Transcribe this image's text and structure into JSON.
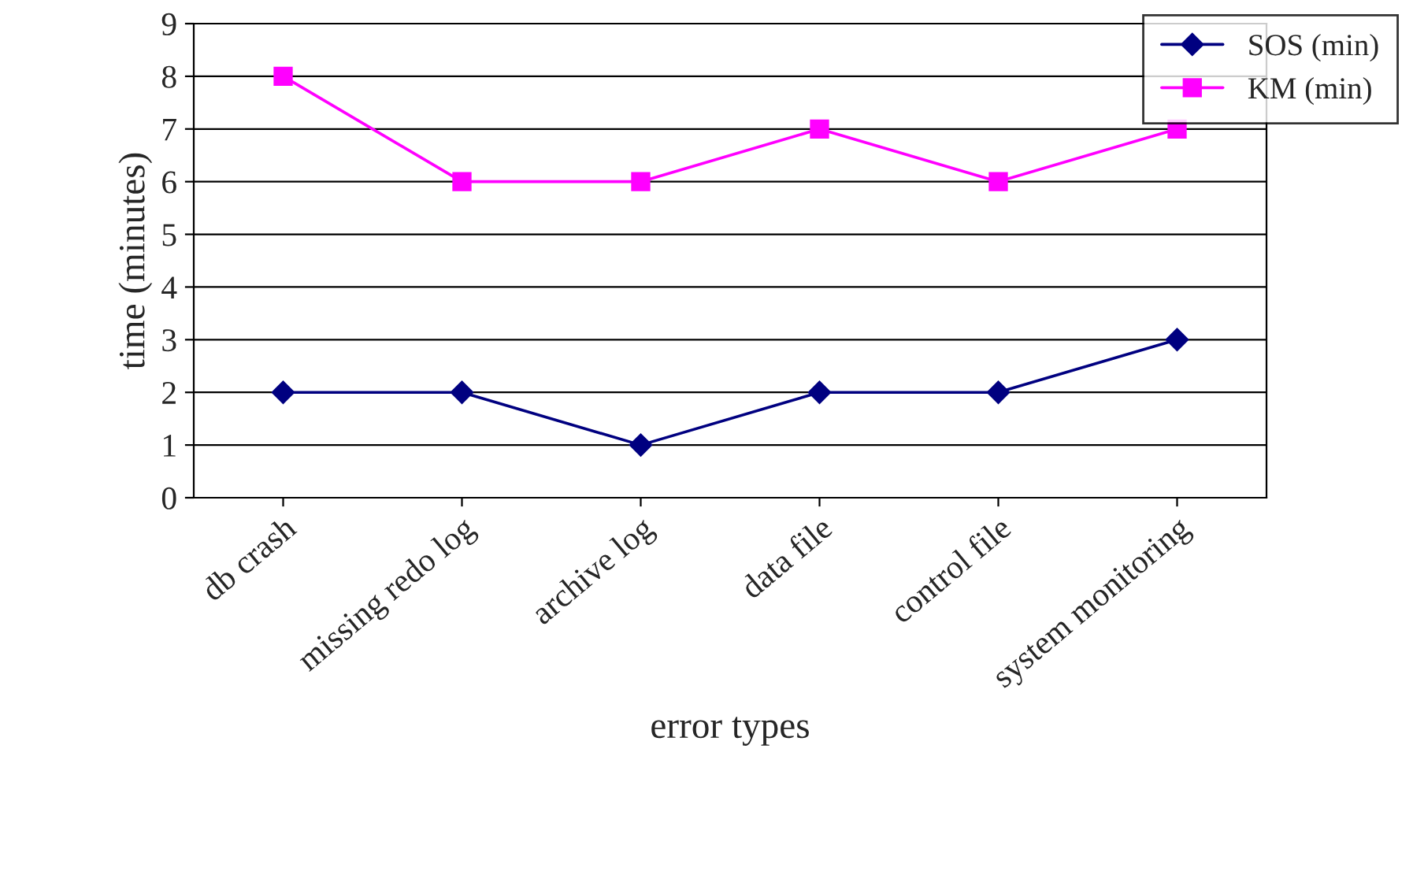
{
  "chart_data": {
    "type": "line",
    "xlabel": "error types",
    "ylabel": "time (minutes)",
    "categories": [
      "db crash",
      "missing redo log",
      "archive log",
      "data file",
      "control file",
      "system monitoring"
    ],
    "series": [
      {
        "name": "SOS (min)",
        "color": "#000080",
        "values": [
          2,
          2,
          1,
          2,
          2,
          3
        ],
        "marker": "diamond"
      },
      {
        "name": "KM (min)",
        "color": "#ff00ff",
        "values": [
          8,
          6,
          6,
          7,
          6,
          7
        ],
        "marker": "square"
      }
    ],
    "ylim": [
      0,
      9
    ],
    "yticks": [
      0,
      1,
      2,
      3,
      4,
      5,
      6,
      7,
      8,
      9
    ],
    "grid": "y",
    "legend": "top right",
    "line_style": "solid"
  }
}
